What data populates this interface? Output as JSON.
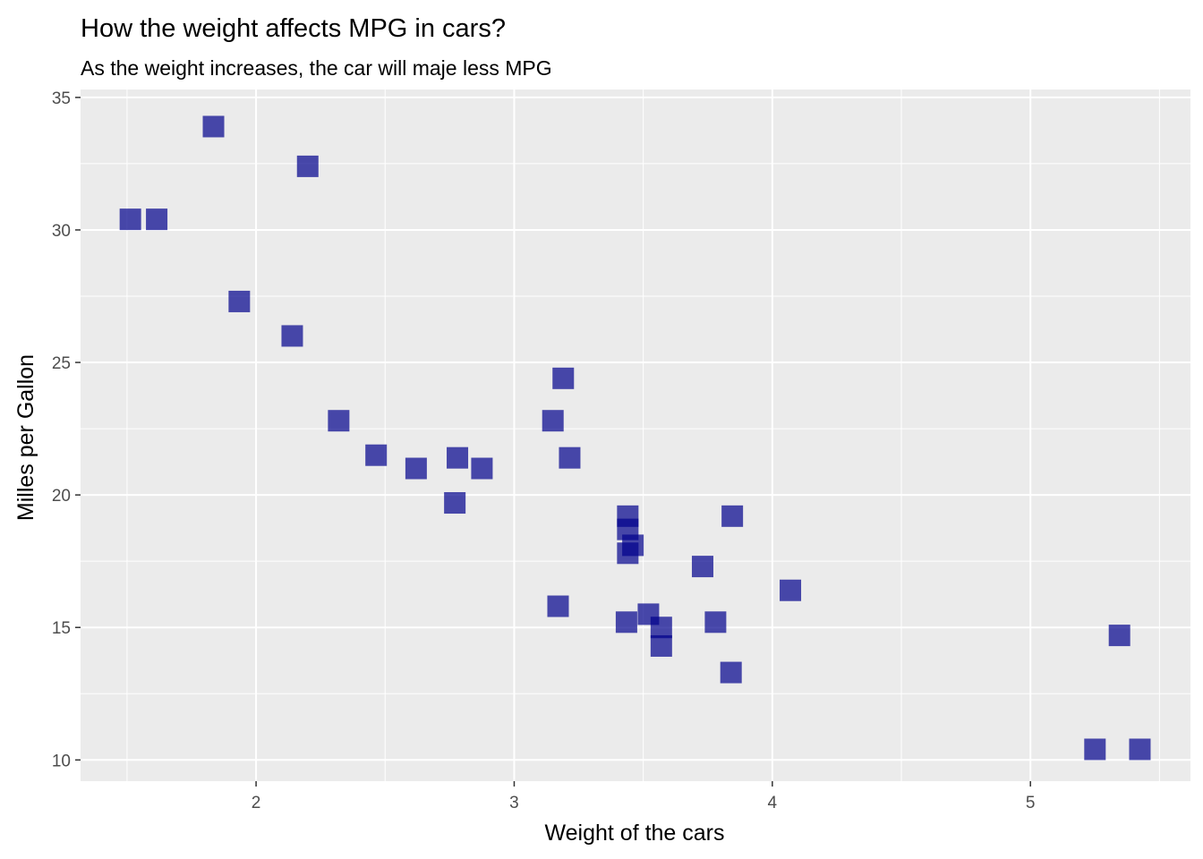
{
  "chart_data": {
    "type": "scatter",
    "title": "How the weight affects MPG in cars?",
    "subtitle": "As the weight increases, the car will maje less MPG",
    "xlabel": "Weight of the cars",
    "ylabel": "Milles per Gallon",
    "xlim": [
      1.32,
      5.62
    ],
    "ylim": [
      9.2,
      35.3
    ],
    "x_ticks": [
      "2",
      "3",
      "4",
      "5"
    ],
    "y_ticks": [
      "10",
      "15",
      "20",
      "25",
      "30",
      "35"
    ],
    "grid": true,
    "legend": "none",
    "colors": {
      "panel": "#ebebeb",
      "grid": "#ffffff",
      "point": "#00008b"
    },
    "point_shape": "square",
    "point_opacity": 0.7,
    "points": [
      {
        "x": 2.62,
        "y": 21.0
      },
      {
        "x": 2.875,
        "y": 21.0
      },
      {
        "x": 2.32,
        "y": 22.8
      },
      {
        "x": 3.215,
        "y": 21.4
      },
      {
        "x": 3.44,
        "y": 18.7
      },
      {
        "x": 3.46,
        "y": 18.1
      },
      {
        "x": 3.57,
        "y": 14.3
      },
      {
        "x": 3.19,
        "y": 24.4
      },
      {
        "x": 3.15,
        "y": 22.8
      },
      {
        "x": 3.44,
        "y": 19.2
      },
      {
        "x": 3.44,
        "y": 17.8
      },
      {
        "x": 4.07,
        "y": 16.4
      },
      {
        "x": 3.73,
        "y": 17.3
      },
      {
        "x": 3.78,
        "y": 15.2
      },
      {
        "x": 5.25,
        "y": 10.4
      },
      {
        "x": 5.424,
        "y": 10.4
      },
      {
        "x": 5.345,
        "y": 14.7
      },
      {
        "x": 2.2,
        "y": 32.4
      },
      {
        "x": 1.615,
        "y": 30.4
      },
      {
        "x": 1.835,
        "y": 33.9
      },
      {
        "x": 2.465,
        "y": 21.5
      },
      {
        "x": 3.52,
        "y": 15.5
      },
      {
        "x": 3.435,
        "y": 15.2
      },
      {
        "x": 3.84,
        "y": 13.3
      },
      {
        "x": 3.845,
        "y": 19.2
      },
      {
        "x": 1.935,
        "y": 27.3
      },
      {
        "x": 2.14,
        "y": 26.0
      },
      {
        "x": 1.513,
        "y": 30.4
      },
      {
        "x": 3.17,
        "y": 15.8
      },
      {
        "x": 2.77,
        "y": 19.7
      },
      {
        "x": 3.57,
        "y": 15.0
      },
      {
        "x": 2.78,
        "y": 21.4
      }
    ]
  }
}
